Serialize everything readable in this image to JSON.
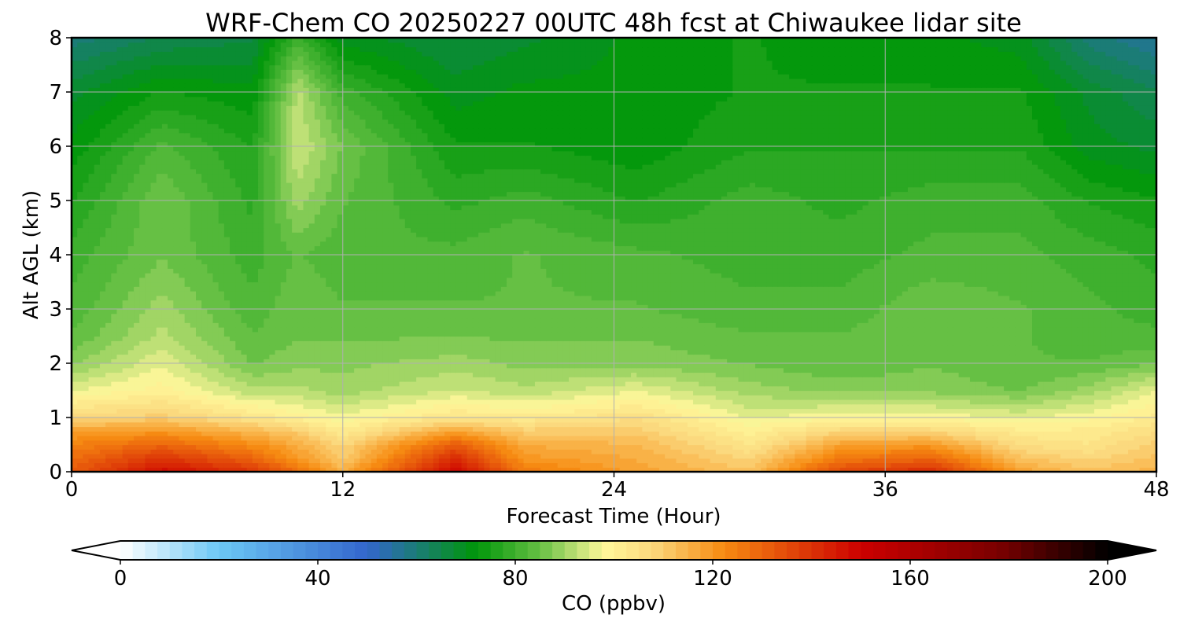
{
  "chart_data": {
    "type": "heatmap",
    "title": "WRF-Chem CO  20250227 00UTC 48h fcst at Chiwaukee lidar site",
    "xlabel": "Forecast Time (Hour)",
    "ylabel": "Alt AGL (km)",
    "xlim": [
      0,
      48
    ],
    "ylim": [
      0,
      8
    ],
    "xticks": [
      "0",
      "12",
      "24",
      "36",
      "48"
    ],
    "yticks": [
      "0",
      "1",
      "2",
      "3",
      "4",
      "5",
      "6",
      "7",
      "8"
    ],
    "grid": true,
    "colorbar": {
      "label": "CO  (ppbv)",
      "ticks": [
        "0",
        "40",
        "80",
        "120",
        "160",
        "200"
      ],
      "range": [
        0,
        200
      ],
      "extend": "both",
      "stops": [
        {
          "v": 0,
          "c": "#ffffff"
        },
        {
          "v": 20,
          "c": "#6cc8f5"
        },
        {
          "v": 50,
          "c": "#3366cc"
        },
        {
          "v": 60,
          "c": "#1b7c76"
        },
        {
          "v": 72,
          "c": "#00960a"
        },
        {
          "v": 85,
          "c": "#66c044"
        },
        {
          "v": 98,
          "c": "#fff79a"
        },
        {
          "v": 108,
          "c": "#fbd77c"
        },
        {
          "v": 122,
          "c": "#f78c12"
        },
        {
          "v": 150,
          "c": "#cc0000"
        },
        {
          "v": 178,
          "c": "#7a0000"
        },
        {
          "v": 200,
          "c": "#000000"
        }
      ]
    },
    "heights_km": [
      0,
      0.25,
      0.5,
      0.75,
      1,
      1.5,
      2,
      2.5,
      3,
      4,
      5,
      6,
      7,
      8
    ],
    "times_h": [
      0,
      4,
      8,
      10,
      12,
      17,
      20,
      25,
      30,
      34,
      38,
      42,
      45,
      48
    ],
    "values_ppbv": [
      [
        132,
        148,
        140,
        128,
        116,
        150,
        126,
        118,
        112,
        136,
        142,
        118,
        112,
        115
      ],
      [
        128,
        140,
        130,
        120,
        110,
        142,
        120,
        116,
        108,
        126,
        130,
        112,
        108,
        112
      ],
      [
        124,
        130,
        122,
        116,
        108,
        132,
        116,
        114,
        104,
        118,
        120,
        106,
        104,
        110
      ],
      [
        118,
        120,
        114,
        110,
        102,
        118,
        110,
        110,
        100,
        108,
        108,
        102,
        102,
        106
      ],
      [
        108,
        110,
        104,
        100,
        97,
        104,
        102,
        106,
        96,
        98,
        98,
        96,
        98,
        102
      ],
      [
        96,
        100,
        92,
        92,
        90,
        94,
        92,
        96,
        90,
        88,
        88,
        86,
        90,
        96
      ],
      [
        88,
        96,
        86,
        88,
        88,
        90,
        88,
        88,
        86,
        84,
        86,
        84,
        84,
        86
      ],
      [
        84,
        92,
        84,
        86,
        86,
        86,
        86,
        86,
        84,
        84,
        86,
        84,
        82,
        82
      ],
      [
        82,
        90,
        82,
        86,
        84,
        84,
        84,
        84,
        82,
        82,
        86,
        84,
        82,
        80
      ],
      [
        80,
        86,
        80,
        84,
        82,
        82,
        84,
        82,
        80,
        80,
        82,
        82,
        80,
        78
      ],
      [
        76,
        86,
        78,
        90,
        84,
        78,
        80,
        76,
        80,
        78,
        80,
        80,
        76,
        74
      ],
      [
        72,
        82,
        76,
        94,
        86,
        74,
        74,
        72,
        76,
        76,
        76,
        76,
        70,
        68
      ],
      [
        68,
        74,
        72,
        92,
        80,
        70,
        72,
        72,
        74,
        74,
        74,
        74,
        68,
        64
      ],
      [
        60,
        64,
        66,
        80,
        70,
        66,
        68,
        72,
        74,
        72,
        72,
        70,
        60,
        56
      ]
    ]
  }
}
